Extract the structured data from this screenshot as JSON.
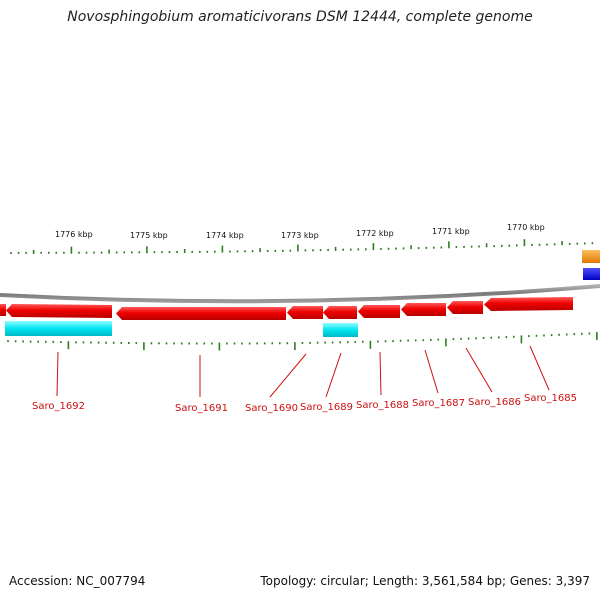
{
  "title": "Novosphingobium aromaticivorans DSM 12444, complete genome",
  "footer": {
    "accession": "Accession: NC_007794",
    "summary": "Topology: circular; Length: 3,561,584 bp; Genes: 3,397"
  },
  "scale_labels": [
    "1776 kbp",
    "1775 kbp",
    "1774 kbp",
    "1773 kbp",
    "1772 kbp",
    "1771 kbp",
    "1770 kbp"
  ],
  "gene_labels": [
    "Saro_1692",
    "Saro_1691",
    "Saro_1690",
    "Saro_1689",
    "Saro_1688",
    "Saro_1687",
    "Saro_1686",
    "Saro_1685"
  ],
  "colors": {
    "cds": "#e60000",
    "gene_feature": "#00e5f0",
    "backbone": "#8a8a8a",
    "ticks": "#2e7d1f",
    "label_text": "#cc1111",
    "edge_orange": "#f08c00",
    "edge_blue": "#0000e6"
  }
}
